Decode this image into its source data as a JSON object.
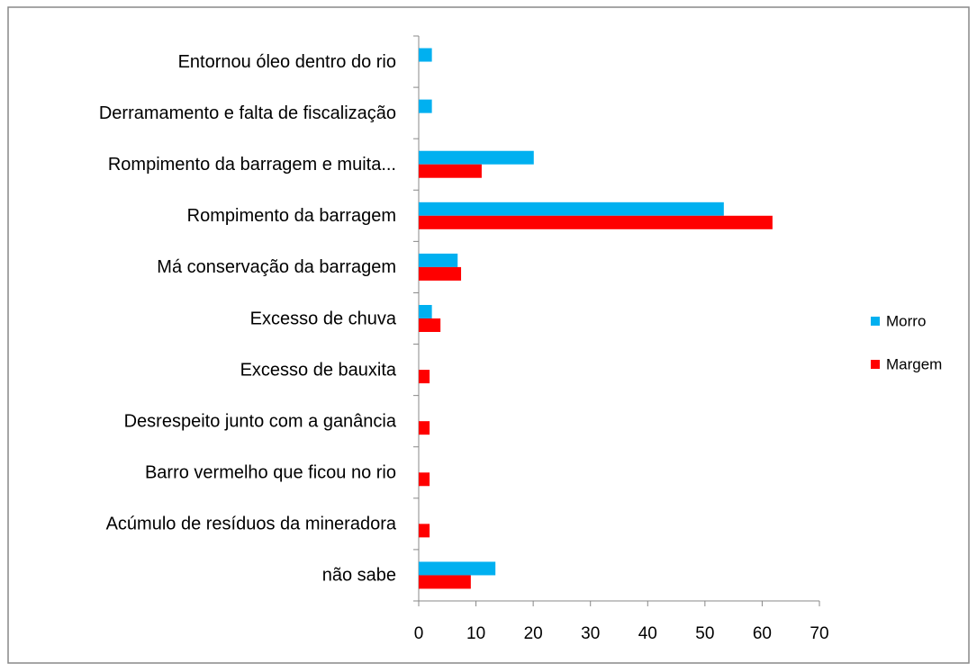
{
  "chart_data": {
    "type": "barh",
    "categories": [
      "Entornou óleo dentro do rio",
      "Derramamento e falta de fiscalização",
      "Rompimento da barragem e muita...",
      "Rompimento da barragem",
      "Má conservação da barragem",
      "Excesso de chuva",
      "Excesso de bauxita",
      "Desrespeito junto com a ganância",
      "Barro vermelho que ficou no rio",
      "Acúmulo de resíduos da mineradora",
      "não sabe"
    ],
    "series": [
      {
        "name": "Morro",
        "color": "#00b0f0",
        "values": [
          2.3,
          2.3,
          20.1,
          53.3,
          6.8,
          2.3,
          0,
          0,
          0,
          0,
          13.4
        ]
      },
      {
        "name": "Margem",
        "color": "#ff0000",
        "values": [
          0,
          0,
          11.0,
          61.8,
          7.4,
          3.8,
          1.9,
          1.9,
          1.9,
          1.9,
          9.1
        ]
      }
    ],
    "xlim": [
      0,
      70
    ],
    "xticks": [
      0,
      10,
      20,
      30,
      40,
      50,
      60,
      70
    ],
    "legend": "right"
  }
}
